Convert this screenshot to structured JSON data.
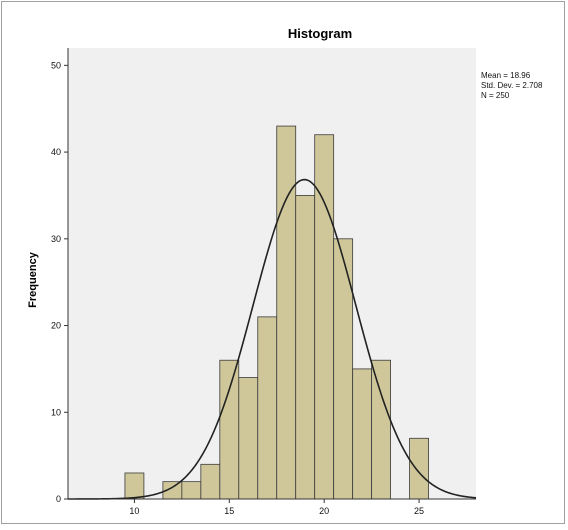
{
  "chart_data": {
    "type": "bar",
    "title": "Histogram",
    "xlabel": "",
    "ylabel": "Frequency",
    "xlim": [
      6.5,
      28
    ],
    "ylim": [
      0,
      52
    ],
    "xticks": [
      10,
      15,
      20,
      25
    ],
    "yticks": [
      0,
      10,
      20,
      30,
      40,
      50
    ],
    "bin_width": 1,
    "bins": [
      {
        "center": 10,
        "value": 3
      },
      {
        "center": 12,
        "value": 2
      },
      {
        "center": 13,
        "value": 2
      },
      {
        "center": 14,
        "value": 4
      },
      {
        "center": 15,
        "value": 16
      },
      {
        "center": 16,
        "value": 14
      },
      {
        "center": 17,
        "value": 21
      },
      {
        "center": 18,
        "value": 43
      },
      {
        "center": 19,
        "value": 35
      },
      {
        "center": 20,
        "value": 42
      },
      {
        "center": 21,
        "value": 30
      },
      {
        "center": 22,
        "value": 15
      },
      {
        "center": 23,
        "value": 16
      },
      {
        "center": 25,
        "value": 7
      }
    ],
    "normal_curve": {
      "mean": 18.96,
      "std": 2.708,
      "n": 250
    },
    "stats": {
      "mean": "Mean = 18.96",
      "std": "Std. Dev. = 2.708",
      "n": "N = 250"
    },
    "colors": {
      "bar_fill": "#cfc79a",
      "bar_stroke": "#3a3a3a",
      "plot_bg": "#f0f0f0",
      "curve": "#222222"
    }
  }
}
